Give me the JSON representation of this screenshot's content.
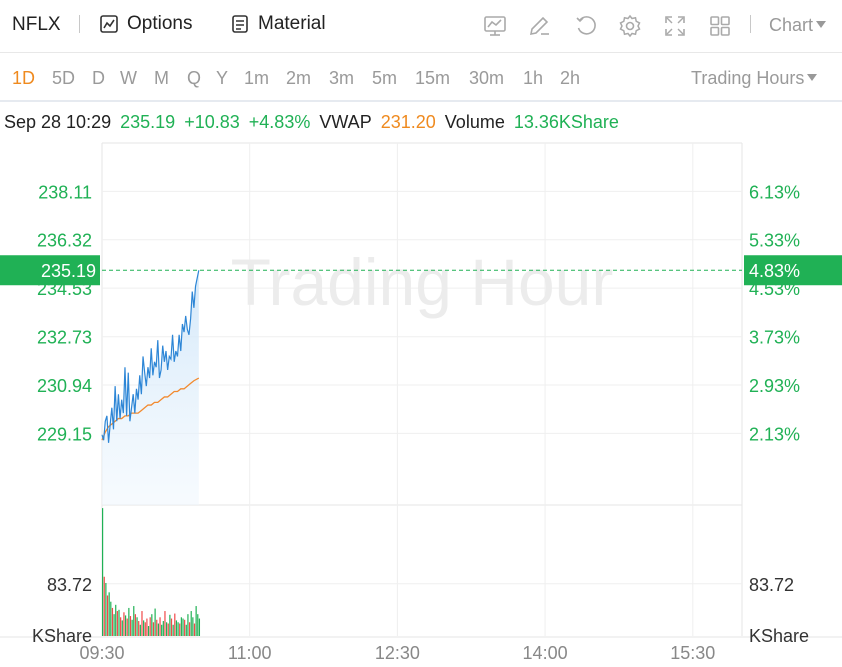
{
  "toolbar": {
    "ticker": "NFLX",
    "options_label": "Options",
    "material_label": "Material",
    "chart_label": "Chart",
    "icons": [
      "indicator-icon",
      "draw-icon",
      "refresh-icon",
      "settings-icon",
      "fullscreen-icon",
      "layout-icon"
    ]
  },
  "periods": [
    "1D",
    "5D",
    "D",
    "W",
    "M",
    "Q",
    "Y",
    "1m",
    "2m",
    "3m",
    "5m",
    "15m",
    "30m",
    "1h",
    "2h"
  ],
  "active_period": "1D",
  "trading_hours_label": "Trading Hours",
  "info": {
    "datetime": "Sep 28 10:29",
    "price": "235.19",
    "change": "+10.83",
    "change_pct": "+4.83%",
    "vwap_label": "VWAP",
    "vwap": "231.20",
    "volume_label": "Volume",
    "volume": "13.36KShare"
  },
  "colors": {
    "up": "#20b155",
    "down": "#f04848",
    "vwap": "#f28a2e",
    "price_line": "#2d86d6",
    "accent": "#ef8a1f"
  },
  "chart_data": {
    "type": "line",
    "watermark": "Trading Hour",
    "x_ticks": [
      "09:30",
      "11:00",
      "12:30",
      "14:00",
      "15:30"
    ],
    "price_axis": {
      "ticks": [
        238.11,
        236.32,
        234.53,
        232.73,
        230.94,
        229.15
      ],
      "labels": [
        "238.11",
        "236.32",
        "234.53",
        "232.73",
        "230.94",
        "229.15"
      ],
      "ylim": [
        226.5,
        239.9
      ]
    },
    "pct_axis": {
      "labels": [
        "6.13%",
        "5.33%",
        "4.53%",
        "3.73%",
        "2.93%",
        "2.13%"
      ]
    },
    "current_price": {
      "value": 235.19,
      "label": "235.19",
      "pct_label": "4.83%"
    },
    "volume_axis": {
      "tick": 83.72,
      "label": "83.72",
      "unit": "KShare",
      "ylim": [
        0,
        210
      ]
    },
    "x_range_minutes": [
      0,
      390
    ],
    "series": [
      {
        "name": "Price",
        "x": [
          0,
          1,
          2,
          3,
          4,
          5,
          6,
          7,
          8,
          9,
          10,
          11,
          12,
          13,
          14,
          15,
          16,
          17,
          18,
          19,
          20,
          21,
          22,
          23,
          24,
          25,
          26,
          27,
          28,
          29,
          30,
          31,
          32,
          33,
          34,
          35,
          36,
          37,
          38,
          39,
          40,
          41,
          42,
          43,
          44,
          45,
          46,
          47,
          48,
          49,
          50,
          51,
          52,
          53,
          54,
          55,
          56,
          57,
          58,
          59
        ],
        "values": [
          229.1,
          228.9,
          229.6,
          229.8,
          228.8,
          229.5,
          230.1,
          229.3,
          230.9,
          229.6,
          230.6,
          229.7,
          230.4,
          229.9,
          231.6,
          229.8,
          231.4,
          229.6,
          230.1,
          230.6,
          229.9,
          230.8,
          230.4,
          231.3,
          230.6,
          232.0,
          231.4,
          230.9,
          231.6,
          231.2,
          232.3,
          231.3,
          231.8,
          231.6,
          232.6,
          231.2,
          231.5,
          232.4,
          231.8,
          232.2,
          231.5,
          232.0,
          231.9,
          232.8,
          231.8,
          232.2,
          232.0,
          232.8,
          232.2,
          233.2,
          232.9,
          233.5,
          233.0,
          232.8,
          233.4,
          234.4,
          233.8,
          234.6,
          234.9,
          235.19
        ]
      },
      {
        "name": "VWAP",
        "x": [
          0,
          2,
          4,
          6,
          8,
          10,
          12,
          14,
          16,
          18,
          20,
          22,
          24,
          26,
          28,
          30,
          32,
          34,
          36,
          38,
          40,
          42,
          44,
          46,
          48,
          50,
          52,
          54,
          56,
          59
        ],
        "values": [
          228.9,
          229.2,
          229.4,
          229.5,
          229.6,
          229.7,
          229.7,
          229.8,
          229.8,
          229.9,
          229.9,
          229.9,
          230.0,
          230.1,
          230.2,
          230.2,
          230.3,
          230.3,
          230.4,
          230.5,
          230.5,
          230.6,
          230.7,
          230.7,
          230.8,
          230.8,
          230.9,
          231.0,
          231.1,
          231.2
        ]
      }
    ],
    "volume": {
      "values": [
        205,
        95,
        85,
        65,
        70,
        55,
        45,
        35,
        50,
        40,
        42,
        30,
        25,
        38,
        33,
        28,
        45,
        32,
        26,
        48,
        35,
        30,
        24,
        18,
        40,
        25,
        22,
        28,
        16,
        30,
        35,
        22,
        44,
        26,
        20,
        30,
        18,
        24,
        40,
        22,
        20,
        34,
        28,
        18,
        36,
        25,
        22,
        20,
        30,
        28,
        26,
        18,
        35,
        22,
        40,
        30,
        20,
        48,
        35,
        28
      ],
      "direction": [
        "up",
        "down",
        "up",
        "down",
        "up",
        "up",
        "down",
        "up",
        "up",
        "down",
        "up",
        "down",
        "up",
        "down",
        "up",
        "down",
        "up",
        "down",
        "up",
        "up",
        "down",
        "up",
        "down",
        "up",
        "down",
        "up",
        "down",
        "down",
        "up",
        "down",
        "up",
        "down",
        "up",
        "down",
        "up",
        "down",
        "up",
        "up",
        "down",
        "up",
        "down",
        "up",
        "down",
        "up",
        "down",
        "up",
        "up",
        "down",
        "up",
        "up",
        "down",
        "up",
        "up",
        "down",
        "up",
        "up",
        "down",
        "up",
        "up",
        "up"
      ]
    }
  }
}
